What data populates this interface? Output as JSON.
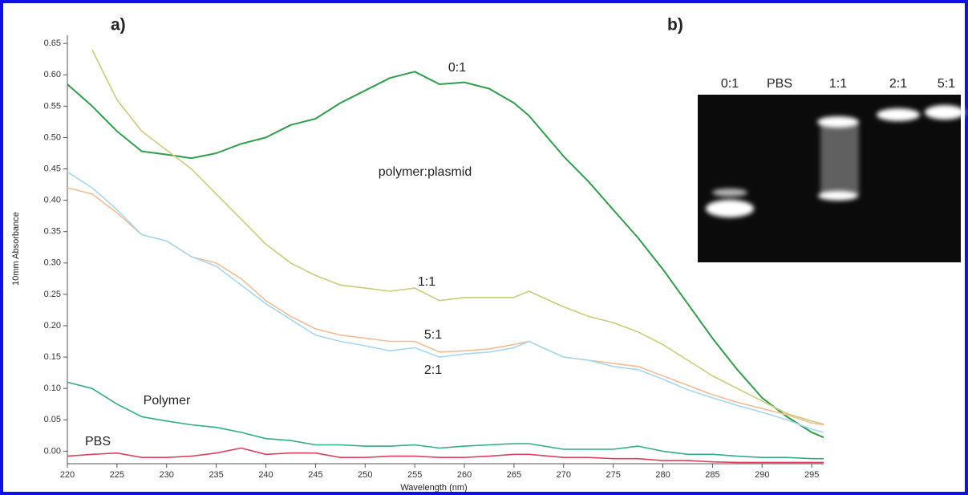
{
  "chart_data": {
    "type": "line",
    "panel_label": "a)",
    "xlabel": "Wavelength (nm)",
    "ylabel": "10mm Absorbance",
    "annotation": "polymer:plasmid",
    "x": [
      220,
      222.5,
      225,
      227.5,
      230,
      232.5,
      235,
      237.5,
      240,
      242.5,
      245,
      247.5,
      250,
      252.5,
      255,
      257.5,
      260,
      262.5,
      265,
      266.5,
      270,
      272.5,
      275,
      277.5,
      280,
      282.5,
      285,
      287.5,
      290,
      292.5,
      295,
      296.2
    ],
    "xlim": [
      220,
      296.2
    ],
    "xticks": [
      220,
      225,
      230,
      235,
      240,
      245,
      250,
      255,
      260,
      265,
      270,
      275,
      280,
      285,
      290,
      295
    ],
    "ylim": [
      -0.02,
      0.663
    ],
    "yticks": [
      {
        "value": 0,
        "label": "0.00"
      },
      0.05,
      {
        "value": 0.1,
        "label": "0.10"
      },
      0.15,
      {
        "value": 0.2,
        "label": "0.20"
      },
      0.25,
      {
        "value": 0.3,
        "label": "0.30"
      },
      0.35,
      {
        "value": 0.4,
        "label": "0.40"
      },
      0.45,
      {
        "value": 0.5,
        "label": "0.50"
      },
      0.55,
      {
        "value": 0.6,
        "label": "0.60"
      },
      0.65
    ],
    "grid": false,
    "series": [
      {
        "name": "0:1",
        "color": "#2e9e4a",
        "values": [
          0.585,
          0.55,
          0.51,
          0.478,
          0.473,
          0.467,
          0.475,
          0.49,
          0.5,
          0.52,
          0.53,
          0.555,
          0.575,
          0.595,
          0.605,
          0.585,
          0.588,
          0.578,
          0.555,
          0.535,
          0.47,
          0.43,
          0.385,
          0.34,
          0.29,
          0.235,
          0.18,
          0.13,
          0.085,
          0.055,
          0.03,
          0.022
        ]
      },
      {
        "name": "1:1",
        "color": "#cccc78",
        "values": [
          null,
          0.64,
          0.56,
          0.51,
          0.48,
          0.45,
          0.41,
          0.37,
          0.33,
          0.3,
          0.28,
          0.265,
          0.26,
          0.255,
          0.26,
          0.24,
          0.245,
          0.245,
          0.245,
          0.255,
          0.23,
          0.215,
          0.205,
          0.19,
          0.17,
          0.145,
          0.12,
          0.1,
          0.08,
          0.06,
          0.048,
          0.043
        ]
      },
      {
        "name": "5:1",
        "color": "#f2bc94",
        "values": [
          0.42,
          0.41,
          0.38,
          0.345,
          0.335,
          0.31,
          0.3,
          0.275,
          0.24,
          0.215,
          0.195,
          0.185,
          0.18,
          0.175,
          0.175,
          0.158,
          0.16,
          0.163,
          0.17,
          0.175,
          0.15,
          0.145,
          0.14,
          0.135,
          0.12,
          0.105,
          0.09,
          0.078,
          0.068,
          0.058,
          0.045,
          0.042
        ]
      },
      {
        "name": "2:1",
        "color": "#a4d8f0",
        "values": [
          0.445,
          0.42,
          0.385,
          0.345,
          0.335,
          0.31,
          0.295,
          0.265,
          0.235,
          0.21,
          0.185,
          0.175,
          0.168,
          0.16,
          0.165,
          0.15,
          0.155,
          0.158,
          0.165,
          0.175,
          0.15,
          0.145,
          0.135,
          0.13,
          0.115,
          0.098,
          0.085,
          0.073,
          0.062,
          0.05,
          0.035,
          0.03
        ]
      },
      {
        "name": "Polymer",
        "color": "#2fae8c",
        "values": [
          0.11,
          0.1,
          0.075,
          0.055,
          0.048,
          0.042,
          0.038,
          0.03,
          0.02,
          0.017,
          0.01,
          0.01,
          0.008,
          0.008,
          0.01,
          0.005,
          0.008,
          0.01,
          0.012,
          0.012,
          0.003,
          0.003,
          0.003,
          0.008,
          0,
          -0.005,
          -0.005,
          -0.008,
          -0.01,
          -0.01,
          -0.012,
          -0.012
        ]
      },
      {
        "name": "PBS",
        "color": "#e0405e",
        "values": [
          -0.008,
          -0.005,
          -0.003,
          -0.01,
          -0.01,
          -0.008,
          -0.003,
          0.005,
          -0.005,
          -0.003,
          -0.003,
          -0.01,
          -0.01,
          -0.008,
          -0.008,
          -0.01,
          -0.01,
          -0.008,
          -0.005,
          -0.005,
          -0.01,
          -0.01,
          -0.012,
          -0.012,
          -0.015,
          -0.015,
          -0.017,
          -0.018,
          -0.018,
          -0.018,
          -0.018,
          -0.018
        ]
      }
    ]
  },
  "gel": {
    "panel_label": "b)",
    "lanes": [
      "0:1",
      "PBS",
      "1:1",
      "2:1",
      "5:1"
    ]
  }
}
